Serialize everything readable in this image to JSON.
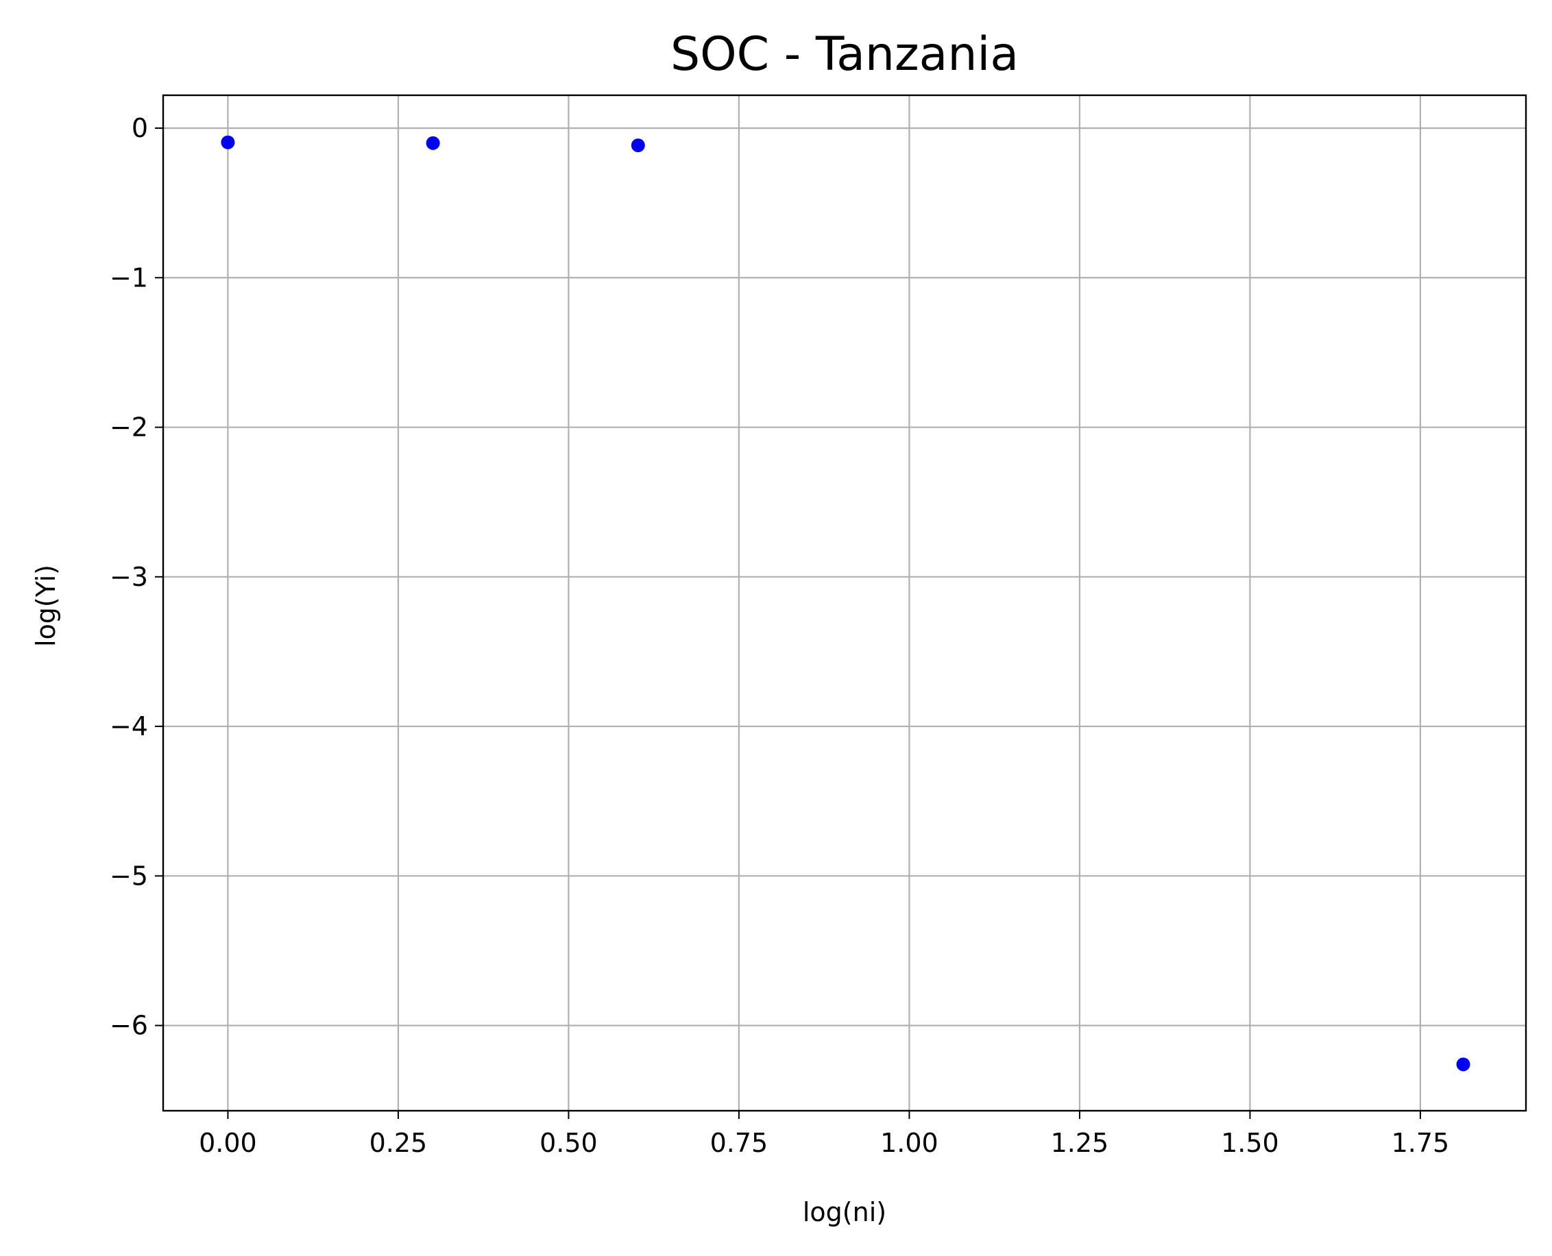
{
  "chart_data": {
    "type": "scatter",
    "title": "SOC - Tanzania",
    "xlabel": "log(ni)",
    "ylabel": "log(Yi)",
    "xlim": [
      -0.095,
      1.905
    ],
    "ylim": [
      -6.57,
      0.22
    ],
    "xticks": [
      0.0,
      0.25,
      0.5,
      0.75,
      1.0,
      1.25,
      1.5,
      1.75
    ],
    "xtick_labels": [
      "0.00",
      "0.25",
      "0.50",
      "0.75",
      "1.00",
      "1.25",
      "1.50",
      "1.75"
    ],
    "yticks": [
      0,
      -1,
      -2,
      -3,
      -4,
      -5,
      -6
    ],
    "ytick_labels": [
      "0",
      "−1",
      "−2",
      "−3",
      "−4",
      "−5",
      "−6"
    ],
    "grid": true,
    "marker_color": "#0000ee",
    "points": [
      {
        "x": 0.0,
        "y": -0.095
      },
      {
        "x": 0.301,
        "y": -0.1
      },
      {
        "x": 0.602,
        "y": -0.115
      },
      {
        "x": 1.813,
        "y": -6.26
      }
    ]
  }
}
